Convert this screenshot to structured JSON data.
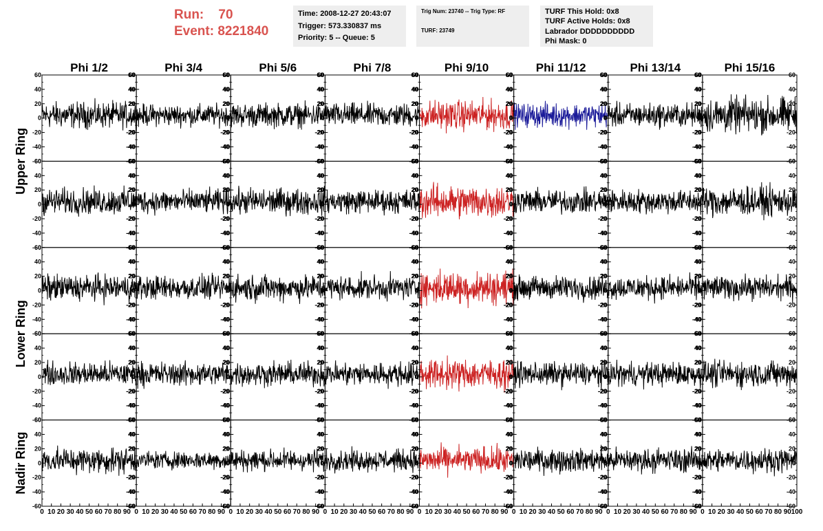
{
  "header": {
    "run_label": "Run:",
    "run_value": "70",
    "event_label": "Event:",
    "event_value": "8221840",
    "run_color": "#d9534f"
  },
  "info_box_1": {
    "time": "Time: 2008-12-27 20:43:07",
    "trigger": "Trigger: 573.330837 ms",
    "priority": "Priority: 5 -- Queue: 5"
  },
  "info_box_2": {
    "trig": "Trig Num: 23740 -- Trig Type: RF",
    "turf": "TURF: 23749"
  },
  "info_box_3": {
    "hold": "TURF This Hold: 0x8",
    "active": "TURF Active Holds: 0x8",
    "labrador": "Labrador DDDDDDDDDD",
    "phimask": "Phi Mask: 0"
  },
  "chart_data": {
    "type": "line",
    "title": "",
    "columns": [
      "Phi 1/2",
      "Phi 3/4",
      "Phi 5/6",
      "Phi 7/8",
      "Phi 9/10",
      "Phi 11/12",
      "Phi 13/14",
      "Phi 15/16"
    ],
    "ring_labels": [
      {
        "label": "Upper Ring",
        "rows": [
          0,
          1
        ]
      },
      {
        "label": "Lower Ring",
        "rows": [
          2,
          3
        ]
      },
      {
        "label": "Nadir Ring",
        "rows": [
          4
        ]
      }
    ],
    "rows": 5,
    "xlim": [
      0,
      100
    ],
    "ylim": [
      -60,
      60
    ],
    "y_ticks": [
      -60,
      -40,
      -20,
      0,
      20,
      40,
      60
    ],
    "x_tick_labels": [
      "0",
      "10",
      "20",
      "30",
      "40",
      "50",
      "60",
      "70",
      "80",
      "90",
      "100"
    ],
    "colors": {
      "normal": "#000000",
      "triggered": "#cc2222",
      "masked": "#1a1a99"
    },
    "red_column": 4,
    "blue_cells": [
      [
        0,
        5
      ]
    ],
    "amplitude_approx": [
      [
        22,
        18,
        20,
        20,
        25,
        20,
        20,
        30
      ],
      [
        22,
        20,
        22,
        20,
        28,
        20,
        20,
        25
      ],
      [
        22,
        20,
        22,
        20,
        28,
        20,
        20,
        20
      ],
      [
        20,
        20,
        20,
        20,
        25,
        20,
        20,
        22
      ],
      [
        22,
        15,
        18,
        18,
        22,
        20,
        20,
        20
      ]
    ]
  }
}
